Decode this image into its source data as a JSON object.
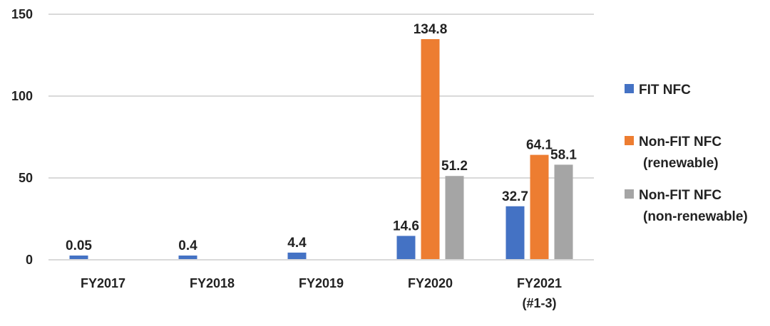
{
  "chart_data": {
    "type": "bar",
    "title": "",
    "xlabel": "",
    "ylabel": "",
    "ylim": [
      0,
      150
    ],
    "yticks": [
      0,
      50,
      100,
      150
    ],
    "grid": true,
    "legend_position": "right",
    "categories": [
      [
        "FY2017"
      ],
      [
        "FY2018"
      ],
      [
        "FY2019"
      ],
      [
        "FY2020"
      ],
      [
        "FY2021",
        "(#1-3)"
      ]
    ],
    "series": [
      {
        "name": [
          "FIT NFC"
        ],
        "color": "#4472C4",
        "values": [
          0.05,
          0.4,
          4.4,
          14.6,
          32.7
        ],
        "labels": [
          "0.05",
          "0.4",
          "4.4",
          "14.6",
          "32.7"
        ]
      },
      {
        "name": [
          "Non-FIT NFC",
          "(renewable)"
        ],
        "color": "#ED7D31",
        "values": [
          null,
          null,
          null,
          134.8,
          64.1
        ],
        "labels": [
          "",
          "",
          "",
          "134.8",
          "64.1"
        ]
      },
      {
        "name": [
          "Non-FIT NFC",
          "(non-renewable)"
        ],
        "color": "#A5A5A5",
        "values": [
          null,
          null,
          null,
          51.2,
          58.1
        ],
        "labels": [
          "",
          "",
          "",
          "51.2",
          "58.1"
        ]
      }
    ]
  }
}
